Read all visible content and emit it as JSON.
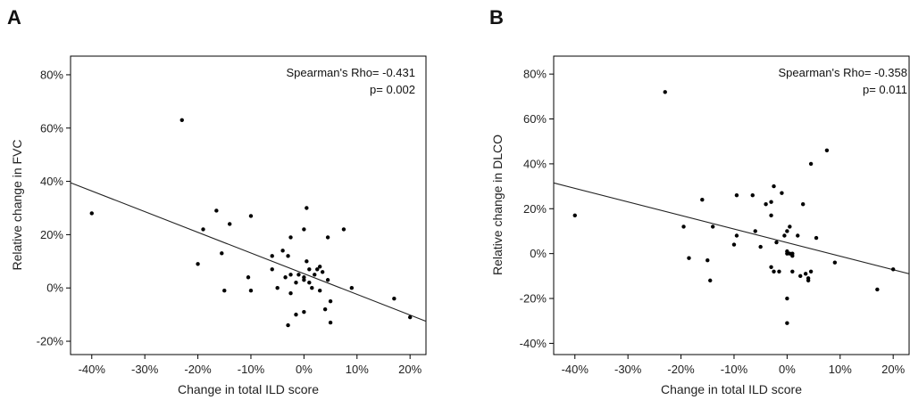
{
  "chart_data": [
    {
      "type": "scatter",
      "panel": "A",
      "xlabel": "Change in total ILD score",
      "ylabel": "Relative change in FVC",
      "xlim": [
        -44,
        23
      ],
      "ylim": [
        -25,
        87
      ],
      "x_ticks": [
        -40,
        -30,
        -20,
        -10,
        0,
        10,
        20
      ],
      "x_tick_labels": [
        "-40%",
        "-30%",
        "-20%",
        "-10%",
        "0%",
        "10%",
        "20%"
      ],
      "y_ticks": [
        -20,
        0,
        20,
        40,
        60,
        80
      ],
      "y_tick_labels": [
        "-20%",
        "0%",
        "20%",
        "40%",
        "60%",
        "80%"
      ],
      "annotation_line1": "Spearman's Rho= -0.431",
      "annotation_line2": "p= 0.002",
      "fit_line": {
        "x": [
          -44,
          23
        ],
        "y": [
          39.5,
          -12.5
        ]
      },
      "points": [
        {
          "x": -40,
          "y": 28
        },
        {
          "x": -23,
          "y": 63
        },
        {
          "x": -20,
          "y": 9
        },
        {
          "x": -19,
          "y": 22
        },
        {
          "x": -16.5,
          "y": 29
        },
        {
          "x": -15.5,
          "y": 13
        },
        {
          "x": -15,
          "y": -1
        },
        {
          "x": -14,
          "y": 24
        },
        {
          "x": -10,
          "y": 27
        },
        {
          "x": -10,
          "y": -1
        },
        {
          "x": -10.5,
          "y": 4
        },
        {
          "x": -6,
          "y": 12
        },
        {
          "x": -6,
          "y": 7
        },
        {
          "x": -5,
          "y": 0
        },
        {
          "x": -4,
          "y": 14
        },
        {
          "x": -3.5,
          "y": 4
        },
        {
          "x": -3,
          "y": 12
        },
        {
          "x": -2.5,
          "y": 5
        },
        {
          "x": -2.5,
          "y": -2
        },
        {
          "x": -2.5,
          "y": 19
        },
        {
          "x": -3,
          "y": -14
        },
        {
          "x": -1.5,
          "y": 2
        },
        {
          "x": -1.5,
          "y": -10
        },
        {
          "x": -1,
          "y": 5
        },
        {
          "x": 0,
          "y": 22
        },
        {
          "x": 0,
          "y": 4
        },
        {
          "x": 0,
          "y": 3
        },
        {
          "x": 0.5,
          "y": 30
        },
        {
          "x": 0,
          "y": -9
        },
        {
          "x": 0.5,
          "y": 10
        },
        {
          "x": 1,
          "y": 7
        },
        {
          "x": 1,
          "y": 2
        },
        {
          "x": 1.5,
          "y": 0
        },
        {
          "x": 2,
          "y": 5
        },
        {
          "x": 2.5,
          "y": 7
        },
        {
          "x": 3,
          "y": 8
        },
        {
          "x": 3,
          "y": -1
        },
        {
          "x": 3.5,
          "y": 6
        },
        {
          "x": 4,
          "y": -8
        },
        {
          "x": 4.5,
          "y": 3
        },
        {
          "x": 4.5,
          "y": 19
        },
        {
          "x": 5,
          "y": -13
        },
        {
          "x": 5,
          "y": -5
        },
        {
          "x": 7.5,
          "y": 22
        },
        {
          "x": 9,
          "y": 0
        },
        {
          "x": 17,
          "y": -4
        },
        {
          "x": 20,
          "y": -11
        }
      ]
    },
    {
      "type": "scatter",
      "panel": "B",
      "xlabel": "Change in total ILD score",
      "ylabel": "Relative change in DLCO",
      "xlim": [
        -44,
        23
      ],
      "ylim": [
        -45,
        88
      ],
      "x_ticks": [
        -40,
        -30,
        -20,
        -10,
        0,
        10,
        20
      ],
      "x_tick_labels": [
        "-40%",
        "-30%",
        "-20%",
        "-10%",
        "0%",
        "10%",
        "20%"
      ],
      "y_ticks": [
        -40,
        -20,
        0,
        20,
        40,
        60,
        80
      ],
      "y_tick_labels": [
        "-40%",
        "-20%",
        "0%",
        "20%",
        "40%",
        "60%",
        "80%"
      ],
      "annotation_line1": "Spearman's Rho= -0.358",
      "annotation_line2": "p= 0.011",
      "fit_line": {
        "x": [
          -44,
          23
        ],
        "y": [
          31.5,
          -9
        ]
      },
      "points": [
        {
          "x": -40,
          "y": 17
        },
        {
          "x": -23,
          "y": 72
        },
        {
          "x": -19.5,
          "y": 12
        },
        {
          "x": -18.5,
          "y": -2
        },
        {
          "x": -16,
          "y": 24
        },
        {
          "x": -15,
          "y": -3
        },
        {
          "x": -14.5,
          "y": -12
        },
        {
          "x": -14,
          "y": 12
        },
        {
          "x": -9.5,
          "y": 26
        },
        {
          "x": -9.5,
          "y": 8
        },
        {
          "x": -10,
          "y": 4
        },
        {
          "x": -6.5,
          "y": 26
        },
        {
          "x": -6,
          "y": 10
        },
        {
          "x": -5,
          "y": 3
        },
        {
          "x": -4,
          "y": 22
        },
        {
          "x": -3,
          "y": 17
        },
        {
          "x": -3,
          "y": 23
        },
        {
          "x": -2.5,
          "y": 30
        },
        {
          "x": -3,
          "y": -6
        },
        {
          "x": -2.5,
          "y": -8
        },
        {
          "x": -2,
          "y": 5
        },
        {
          "x": -1.5,
          "y": -8
        },
        {
          "x": -1,
          "y": 27
        },
        {
          "x": -0.5,
          "y": 8
        },
        {
          "x": 0,
          "y": 10
        },
        {
          "x": 0,
          "y": 1
        },
        {
          "x": 0,
          "y": 0
        },
        {
          "x": 0,
          "y": -20
        },
        {
          "x": 0,
          "y": -31
        },
        {
          "x": 0.5,
          "y": 12
        },
        {
          "x": 0.5,
          "y": 0
        },
        {
          "x": 1,
          "y": 0
        },
        {
          "x": 1,
          "y": -1
        },
        {
          "x": 1,
          "y": -8
        },
        {
          "x": 2,
          "y": 8
        },
        {
          "x": 2.5,
          "y": -10
        },
        {
          "x": 3,
          "y": 22
        },
        {
          "x": 3.5,
          "y": -9
        },
        {
          "x": 4,
          "y": -11
        },
        {
          "x": 4,
          "y": -12
        },
        {
          "x": 4.5,
          "y": -8
        },
        {
          "x": 4.5,
          "y": 40
        },
        {
          "x": 5.5,
          "y": 7
        },
        {
          "x": 7.5,
          "y": 46
        },
        {
          "x": 9,
          "y": -4
        },
        {
          "x": 17,
          "y": -16
        },
        {
          "x": 20,
          "y": -7
        }
      ]
    }
  ]
}
